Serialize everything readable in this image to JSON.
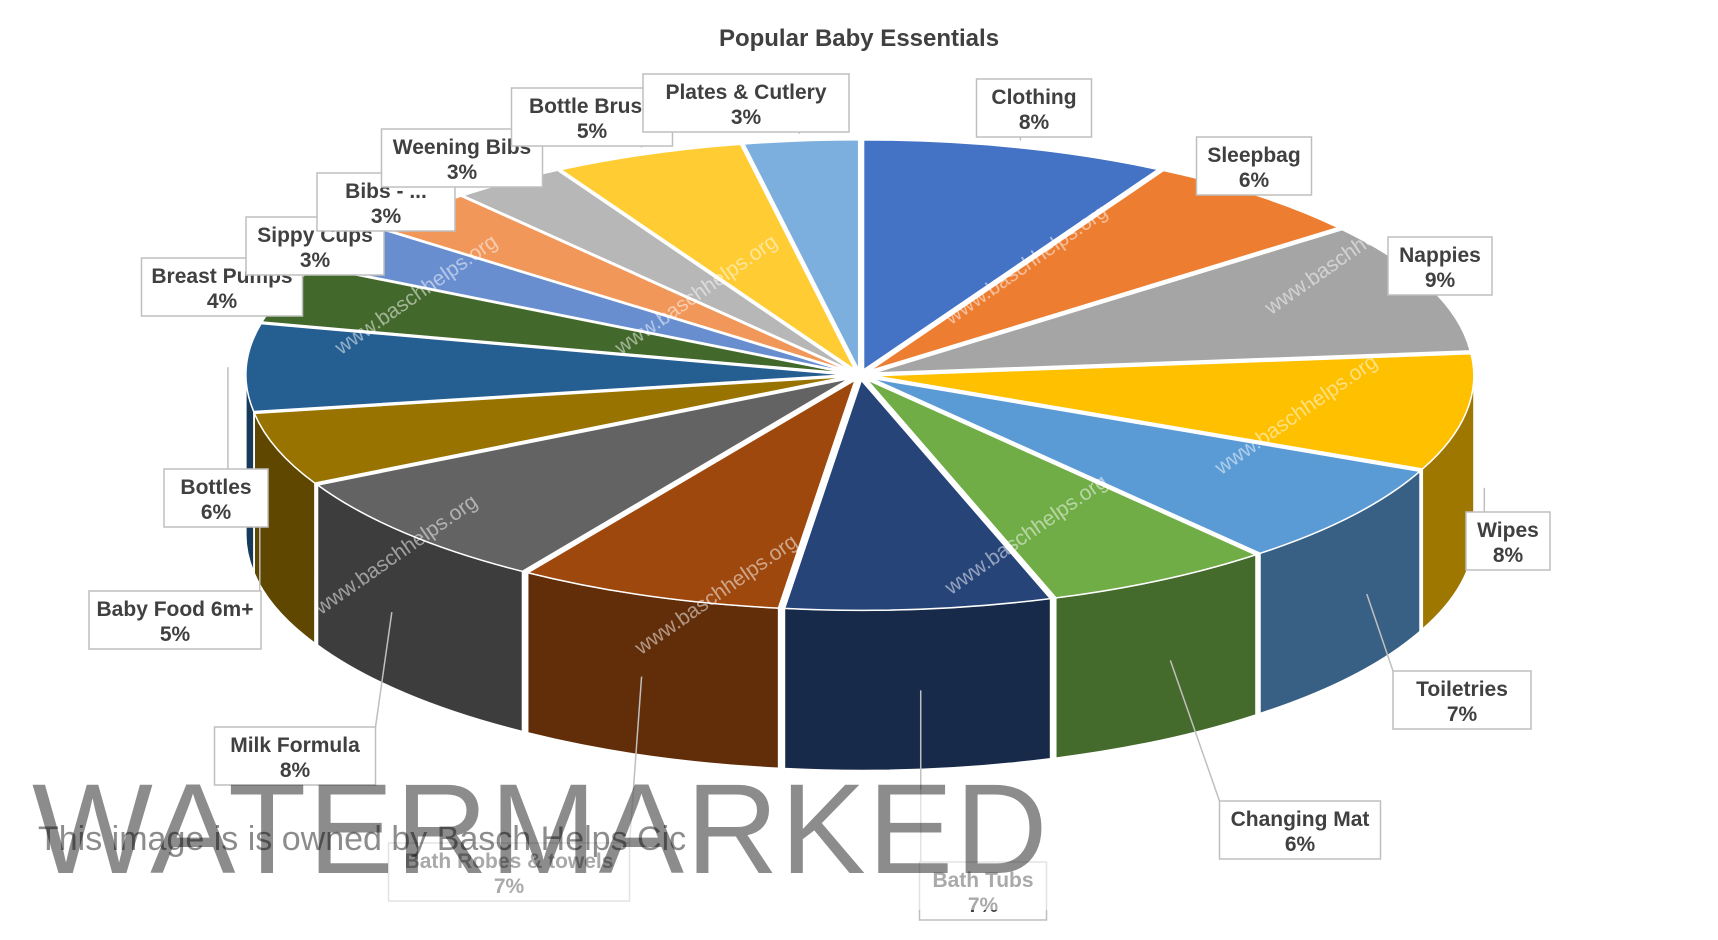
{
  "chart_data": {
    "type": "pie",
    "title": "Popular Baby Essentials",
    "variant": "3d-exploded",
    "slices": [
      {
        "label": "Clothing",
        "value": 8,
        "display": "8%",
        "color": "#4472C4"
      },
      {
        "label": "Sleepbag",
        "value": 6,
        "display": "6%",
        "color": "#ED7D31"
      },
      {
        "label": "Nappies",
        "value": 9,
        "display": "9%",
        "color": "#A5A5A5"
      },
      {
        "label": "Wipes",
        "value": 8,
        "display": "8%",
        "color": "#FFC000"
      },
      {
        "label": "Toiletries",
        "value": 7,
        "display": "7%",
        "color": "#5B9BD5"
      },
      {
        "label": "Changing Mat",
        "value": 6,
        "display": "6%",
        "color": "#70AD47"
      },
      {
        "label": "Bath Tubs",
        "value": 7,
        "display": "7%",
        "color": "#264478"
      },
      {
        "label": "Bath Robes & towels",
        "value": 7,
        "display": "7%",
        "color": "#9E480E"
      },
      {
        "label": "Milk Formula",
        "value": 8,
        "display": "8%",
        "color": "#636363"
      },
      {
        "label": "Baby Food 6m+",
        "value": 5,
        "display": "5%",
        "color": "#997300"
      },
      {
        "label": "Bottles",
        "value": 6,
        "display": "6%",
        "color": "#255E91"
      },
      {
        "label": "Breast Pumps",
        "value": 4,
        "display": "4%",
        "color": "#43682B"
      },
      {
        "label": "Sippy Cups",
        "value": 3,
        "display": "3%",
        "color": "#698ED0"
      },
      {
        "label": "Bibs - ...",
        "value": 3,
        "display": "3%",
        "color": "#F1975A"
      },
      {
        "label": "Weening Bibs",
        "value": 3,
        "display": "3%",
        "color": "#B7B7B7"
      },
      {
        "label": "Bottle Brush",
        "value": 5,
        "display": "5%",
        "color": "#FFCD33"
      },
      {
        "label": "Plates & Cutlery",
        "value": 3,
        "display": "3%",
        "color": "#7CAFDD"
      }
    ]
  },
  "watermark": {
    "site": "www.baschhelps.org",
    "big": "WATERMARKED",
    "owner": "This image is is owned by Basch Helps Cic"
  }
}
